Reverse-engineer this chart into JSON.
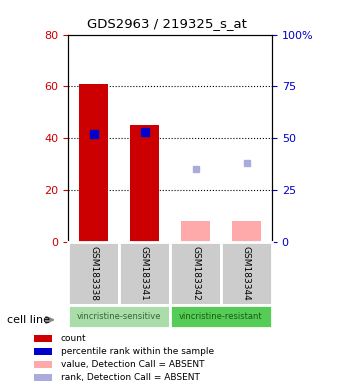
{
  "title": "GDS2963 / 219325_s_at",
  "samples": [
    "GSM183338",
    "GSM183341",
    "GSM183342",
    "GSM183344"
  ],
  "bar_values": [
    61,
    45,
    null,
    null
  ],
  "bar_absent_values": [
    null,
    null,
    8,
    8
  ],
  "rank_values": [
    52,
    53,
    null,
    null
  ],
  "rank_absent_values": [
    null,
    null,
    35,
    38
  ],
  "ylim_left": [
    0,
    80
  ],
  "ylim_right": [
    0,
    100
  ],
  "left_ticks": [
    0,
    20,
    40,
    60,
    80
  ],
  "right_ticks": [
    0,
    25,
    50,
    75,
    100
  ],
  "right_tick_labels": [
    "0",
    "25",
    "50",
    "75",
    "100%"
  ],
  "bar_color": "#cc0000",
  "bar_absent_color": "#ffaaaa",
  "rank_color": "#0000cc",
  "rank_absent_color": "#aaaadd",
  "left_tick_color": "#cc0000",
  "right_tick_color": "#0000cc",
  "sample_bg_color": "#cccccc",
  "dotted_lines": [
    20,
    40,
    60
  ],
  "legend_items": [
    {
      "color": "#cc0000",
      "label": "count"
    },
    {
      "color": "#0000cc",
      "label": "percentile rank within the sample"
    },
    {
      "color": "#ffaaaa",
      "label": "value, Detection Call = ABSENT"
    },
    {
      "color": "#aaaadd",
      "label": "rank, Detection Call = ABSENT"
    }
  ],
  "group1_label": "vincristine-sensitive",
  "group2_label": "vincristine-resistant",
  "group1_color": "#aaddaa",
  "group2_color": "#55cc55",
  "group1_text_color": "#336633",
  "group2_text_color": "#1a5c1a",
  "cell_line_label": "cell line"
}
